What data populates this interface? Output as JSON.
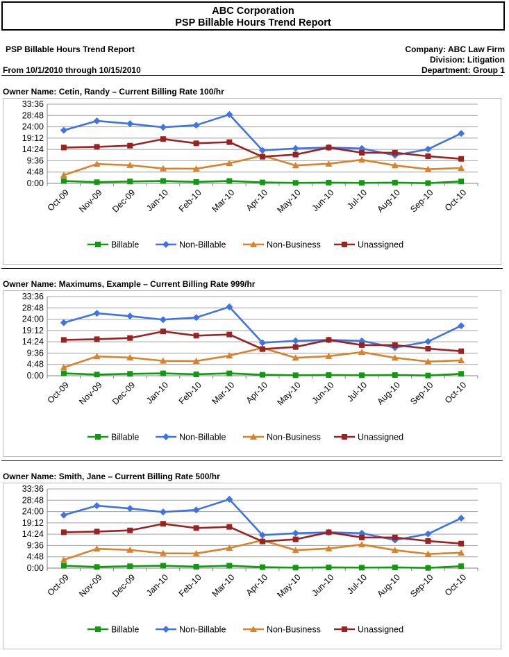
{
  "report": {
    "company_title": "ABC Corporation",
    "report_title": "PSP Billable Hours Trend Report",
    "left_title": "PSP Billable Hours Trend Report",
    "date_range": "From 10/1/2010 through 10/15/2010",
    "company": "Company: ABC Law Firm",
    "division": "Division: Litigation",
    "department": "Department: Group 1"
  },
  "colors": {
    "Billable": "#119911",
    "Non-Billable": "#3d73e3",
    "Non-Business": "#d9822b",
    "Unassigned": "#992222"
  },
  "chart_data": [
    {
      "type": "line",
      "owner": "Owner Name: Cetin, Randy – Current Billing Rate 100/hr",
      "categories": [
        "Oct-09",
        "Nov-09",
        "Dec-09",
        "Jan-10",
        "Feb-10",
        "Mar-10",
        "Apr-10",
        "May-10",
        "Jun-10",
        "Jul-10",
        "Aug-10",
        "Sep-10",
        "Oct-10"
      ],
      "ytick_labels": [
        "0:00",
        "4:48",
        "9:36",
        "14:24",
        "19:12",
        "24:00",
        "28:48",
        "33:36"
      ],
      "ylim": [
        0,
        33.6
      ],
      "grid": true,
      "legend": "bottom",
      "series": [
        {
          "name": "Billable",
          "marker": "square",
          "values": [
            1.0,
            0.5,
            0.8,
            1.0,
            0.6,
            1.0,
            0.4,
            0.2,
            0.3,
            0.2,
            0.3,
            0.1,
            0.8
          ]
        },
        {
          "name": "Non-Billable",
          "marker": "diamond",
          "values": [
            22.5,
            26.5,
            25.3,
            23.8,
            24.7,
            29.2,
            14.0,
            14.8,
            15.2,
            14.8,
            11.9,
            14.5,
            21.2
          ]
        },
        {
          "name": "Non-Business",
          "marker": "triangle",
          "values": [
            3.5,
            8.2,
            7.7,
            6.3,
            6.2,
            8.5,
            11.8,
            7.6,
            8.3,
            10.0,
            7.6,
            6.0,
            6.5
          ]
        },
        {
          "name": "Unassigned",
          "marker": "square",
          "values": [
            15.2,
            15.5,
            16.0,
            18.8,
            17.0,
            17.5,
            11.3,
            12.2,
            15.2,
            13.0,
            13.0,
            11.5,
            10.4
          ]
        }
      ]
    },
    {
      "type": "line",
      "owner": "Owner Name: Maximums, Example – Current Billing Rate 999/hr",
      "categories": [
        "Oct-09",
        "Nov-09",
        "Dec-09",
        "Jan-10",
        "Feb-10",
        "Mar-10",
        "Apr-10",
        "May-10",
        "Jun-10",
        "Jul-10",
        "Aug-10",
        "Sep-10",
        "Oct-10"
      ],
      "ytick_labels": [
        "0:00",
        "4:48",
        "9:36",
        "14:24",
        "19:12",
        "24:00",
        "28:48",
        "33:36"
      ],
      "ylim": [
        0,
        33.6
      ],
      "grid": true,
      "legend": "bottom",
      "series": [
        {
          "name": "Billable",
          "marker": "square",
          "values": [
            1.0,
            0.5,
            0.8,
            1.0,
            0.6,
            1.0,
            0.4,
            0.2,
            0.3,
            0.2,
            0.3,
            0.1,
            0.8
          ]
        },
        {
          "name": "Non-Billable",
          "marker": "diamond",
          "values": [
            22.5,
            26.5,
            25.3,
            23.8,
            24.7,
            29.2,
            14.0,
            14.8,
            15.2,
            14.8,
            11.9,
            14.5,
            21.2
          ]
        },
        {
          "name": "Non-Business",
          "marker": "triangle",
          "values": [
            3.5,
            8.2,
            7.7,
            6.3,
            6.2,
            8.5,
            11.8,
            7.6,
            8.3,
            10.0,
            7.6,
            6.0,
            6.5
          ]
        },
        {
          "name": "Unassigned",
          "marker": "square",
          "values": [
            15.2,
            15.5,
            16.0,
            18.8,
            17.0,
            17.5,
            11.3,
            12.2,
            15.2,
            13.0,
            13.0,
            11.5,
            10.4
          ]
        }
      ]
    },
    {
      "type": "line",
      "owner": "Owner Name: Smith, Jane – Current Billing Rate 500/hr",
      "categories": [
        "Oct-09",
        "Nov-09",
        "Dec-09",
        "Jan-10",
        "Feb-10",
        "Mar-10",
        "Apr-10",
        "May-10",
        "Jun-10",
        "Jul-10",
        "Aug-10",
        "Sep-10",
        "Oct-10"
      ],
      "ytick_labels": [
        "0:00",
        "4:48",
        "9:36",
        "14:24",
        "19:12",
        "24:00",
        "28:48",
        "33:36"
      ],
      "ylim": [
        0,
        33.6
      ],
      "grid": true,
      "legend": "bottom",
      "series": [
        {
          "name": "Billable",
          "marker": "square",
          "values": [
            1.0,
            0.5,
            0.8,
            1.0,
            0.6,
            1.0,
            0.4,
            0.2,
            0.3,
            0.2,
            0.3,
            0.1,
            0.8
          ]
        },
        {
          "name": "Non-Billable",
          "marker": "diamond",
          "values": [
            22.5,
            26.5,
            25.3,
            23.8,
            24.7,
            29.2,
            14.0,
            14.8,
            15.2,
            14.8,
            11.9,
            14.5,
            21.2
          ]
        },
        {
          "name": "Non-Business",
          "marker": "triangle",
          "values": [
            3.5,
            8.2,
            7.7,
            6.3,
            6.2,
            8.5,
            11.8,
            7.6,
            8.3,
            10.0,
            7.6,
            6.0,
            6.5
          ]
        },
        {
          "name": "Unassigned",
          "marker": "square",
          "values": [
            15.2,
            15.5,
            16.0,
            18.8,
            17.0,
            17.5,
            11.3,
            12.2,
            15.2,
            13.0,
            13.0,
            11.5,
            10.4
          ]
        }
      ]
    }
  ]
}
